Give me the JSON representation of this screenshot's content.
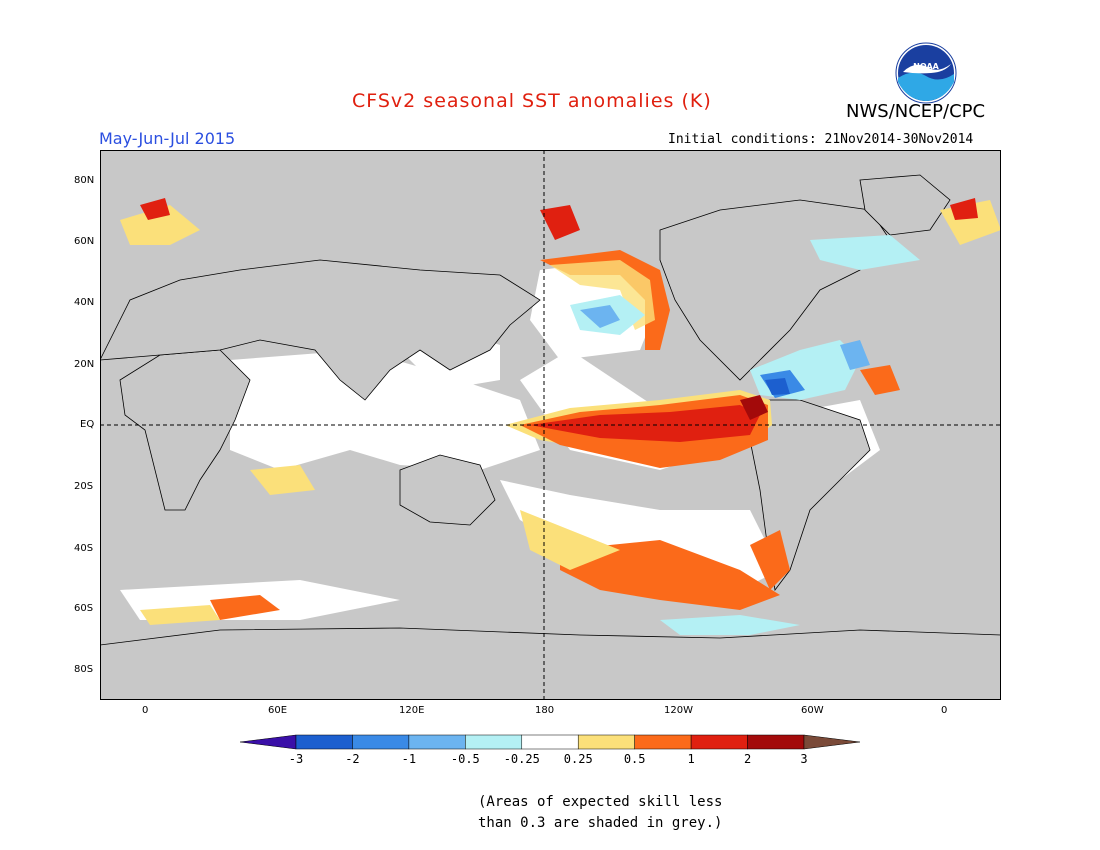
{
  "header": {
    "title": "CFSv2 seasonal SST anomalies (K)",
    "title_color": "#e0200f",
    "agency": "NWS/NCEP/CPC",
    "logo_text": "NOAA",
    "period": "May-Jun-Jul 2015",
    "period_color": "#2b4fe0",
    "initial_conditions": "Initial conditions: 21Nov2014-30Nov2014"
  },
  "map": {
    "lat_labels": [
      "80N",
      "60N",
      "40N",
      "20N",
      "EQ",
      "20S",
      "40S",
      "60S",
      "80S"
    ],
    "lon_labels": [
      "0",
      "60E",
      "120E",
      "180",
      "120W",
      "60W",
      "0"
    ],
    "land_color": "#c8c8c8",
    "ocean_neutral_color": "#ffffff"
  },
  "colorbar": {
    "labels": [
      "-3",
      "-2",
      "-1",
      "-0.5",
      "-0.25",
      "0.25",
      "0.5",
      "1",
      "2",
      "3"
    ],
    "colors": [
      "#3a0fa8",
      "#1c5fcf",
      "#3a8ae6",
      "#6cb4f0",
      "#b4f0f4",
      "#ffffff",
      "#fbe07a",
      "#fb6a1a",
      "#e02010",
      "#a30a0a",
      "#7a4a38"
    ]
  },
  "footnote": {
    "line1": "(Areas of expected skill less",
    "line2": "than 0.3 are shaded in grey.)"
  }
}
